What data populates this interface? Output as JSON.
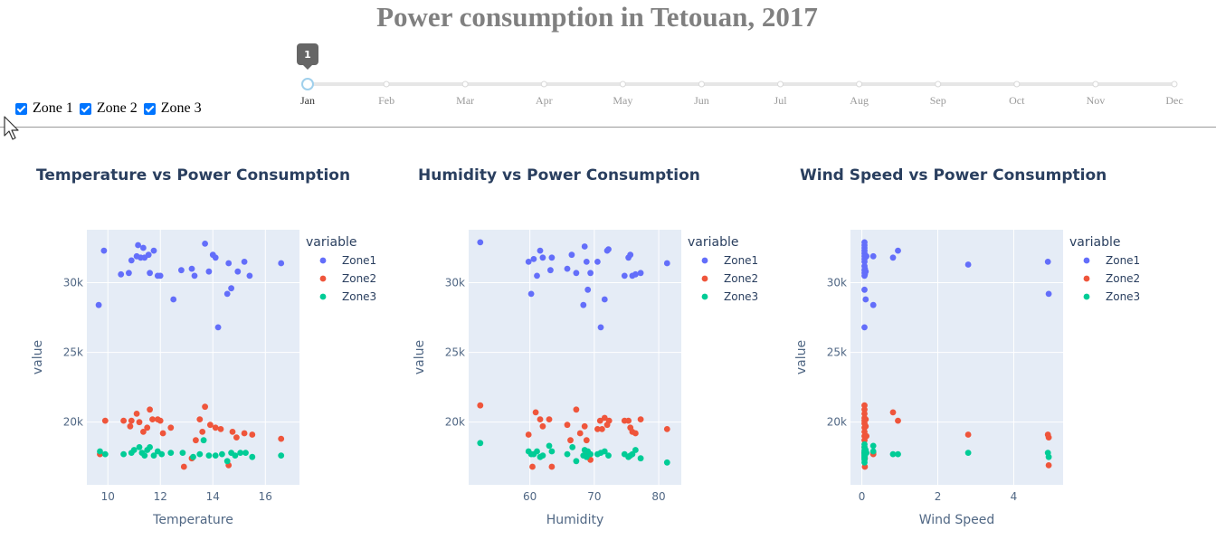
{
  "page": {
    "title": "Power consumption in Tetouan, 2017"
  },
  "zones": [
    {
      "label": "Zone 1",
      "checked": true
    },
    {
      "label": "Zone 2",
      "checked": true
    },
    {
      "label": "Zone 3",
      "checked": true
    }
  ],
  "month_slider": {
    "months": [
      "Jan",
      "Feb",
      "Mar",
      "Apr",
      "May",
      "Jun",
      "Jul",
      "Aug",
      "Sep",
      "Oct",
      "Nov",
      "Dec"
    ],
    "selected_index": 0,
    "tooltip": "1",
    "track_color": "#e6e6e6",
    "handle_color": "#a0d0ec"
  },
  "colors": {
    "Zone1": "#636efa",
    "Zone2": "#ef553b",
    "Zone3": "#00cc96",
    "plot_bg": "#e5ecf6",
    "title_text": "#2a3f5f",
    "axis_text": "#506784"
  },
  "chart_data": [
    {
      "type": "scatter",
      "title": "Temperature vs Power Consumption",
      "xlabel": "Temperature",
      "ylabel": "value",
      "xlim": [
        9.2,
        17.3
      ],
      "ylim": [
        15500,
        33800
      ],
      "xticks": [
        10,
        12,
        14,
        16
      ],
      "yticks": [
        20000,
        25000,
        30000
      ],
      "ytick_labels": [
        "20k",
        "25k",
        "30k"
      ],
      "legend_title": "variable",
      "series": [
        {
          "name": "Zone1",
          "x": [
            9.65,
            9.85,
            10.5,
            10.8,
            10.9,
            11.1,
            11.15,
            11.25,
            11.35,
            11.4,
            11.55,
            11.6,
            11.75,
            11.9,
            12.0,
            12.5,
            12.8,
            13.2,
            13.3,
            13.7,
            13.85,
            14.0,
            14.1,
            14.2,
            14.55,
            14.6,
            14.7,
            14.95,
            15.2,
            15.4,
            16.6
          ],
          "y": [
            28400,
            32300,
            30600,
            30700,
            31600,
            31900,
            32700,
            31800,
            32500,
            31800,
            32000,
            30700,
            32300,
            30500,
            30500,
            28800,
            30900,
            31000,
            30500,
            32800,
            30800,
            32000,
            31800,
            26800,
            29200,
            31400,
            29600,
            30800,
            31500,
            30500,
            31400
          ]
        },
        {
          "name": "Zone2",
          "x": [
            9.7,
            9.9,
            10.6,
            10.85,
            10.9,
            11.1,
            11.2,
            11.35,
            11.5,
            11.6,
            11.7,
            11.9,
            12.0,
            12.1,
            12.4,
            12.9,
            13.2,
            13.35,
            13.5,
            13.6,
            13.7,
            13.9,
            14.1,
            14.3,
            14.6,
            14.75,
            14.9,
            15.2,
            15.5,
            16.6
          ],
          "y": [
            17700,
            20100,
            20100,
            19700,
            20100,
            20600,
            20000,
            19300,
            19600,
            20900,
            20200,
            20200,
            20100,
            19200,
            19600,
            16800,
            17400,
            18700,
            20200,
            19300,
            21100,
            19800,
            19600,
            19500,
            16900,
            19300,
            18900,
            19200,
            19100,
            18800
          ]
        },
        {
          "name": "Zone3",
          "x": [
            9.7,
            9.9,
            10.6,
            10.9,
            11.0,
            11.2,
            11.3,
            11.4,
            11.5,
            11.6,
            11.75,
            11.9,
            12.05,
            12.4,
            12.85,
            13.25,
            13.5,
            13.65,
            13.85,
            14.1,
            14.35,
            14.55,
            14.7,
            14.85,
            15.05,
            15.25,
            15.5,
            16.6
          ],
          "y": [
            17900,
            17700,
            17700,
            17800,
            18000,
            18200,
            17800,
            17600,
            18000,
            18200,
            17600,
            17900,
            17700,
            17800,
            17800,
            17500,
            17700,
            18700,
            17600,
            17600,
            17700,
            17200,
            17800,
            17600,
            17800,
            17800,
            17500,
            17600
          ]
        }
      ]
    },
    {
      "type": "scatter",
      "title": "Humidity vs Power Consumption",
      "xlabel": "Humidity",
      "ylabel": "value",
      "xlim": [
        50.5,
        83.5
      ],
      "ylim": [
        15500,
        33800
      ],
      "xticks": [
        60,
        70,
        80
      ],
      "yticks": [
        20000,
        25000,
        30000
      ],
      "ytick_labels": [
        "20k",
        "25k",
        "30k"
      ],
      "legend_title": "variable",
      "series": [
        {
          "name": "Zone1",
          "x": [
            52.3,
            59.8,
            60.2,
            60.6,
            61.1,
            61.6,
            62.0,
            63.2,
            63.4,
            65.8,
            66.5,
            67.2,
            68.3,
            68.5,
            68.8,
            69.0,
            69.4,
            70.5,
            71.0,
            71.6,
            72.0,
            72.2,
            74.7,
            75.3,
            75.6,
            75.9,
            76.4,
            77.2,
            81.3
          ],
          "y": [
            32900,
            31500,
            29200,
            31700,
            30500,
            32300,
            31800,
            30900,
            31800,
            31000,
            32000,
            30700,
            28400,
            32600,
            31500,
            29500,
            30700,
            31500,
            26800,
            28800,
            32300,
            32400,
            30500,
            31800,
            32000,
            30500,
            30600,
            30700,
            31400
          ]
        },
        {
          "name": "Zone2",
          "x": [
            52.3,
            59.8,
            60.4,
            60.9,
            61.6,
            62.0,
            63.0,
            63.4,
            65.8,
            66.3,
            67.2,
            67.8,
            68.5,
            68.8,
            69.0,
            69.4,
            70.5,
            70.9,
            71.2,
            71.6,
            72.0,
            72.3,
            74.7,
            75.3,
            75.6,
            75.9,
            76.4,
            77.2,
            81.3
          ],
          "y": [
            21200,
            19100,
            16800,
            20700,
            20200,
            19700,
            20200,
            16800,
            19800,
            18700,
            20900,
            19200,
            19700,
            18700,
            17700,
            17300,
            19500,
            20100,
            19500,
            20300,
            19800,
            20100,
            20100,
            20100,
            19600,
            19300,
            19200,
            20200,
            19500
          ]
        },
        {
          "name": "Zone3",
          "x": [
            52.3,
            59.8,
            60.2,
            60.6,
            61.1,
            61.6,
            62.0,
            63.0,
            63.4,
            65.8,
            66.6,
            67.2,
            68.3,
            68.5,
            68.8,
            69.0,
            69.4,
            70.5,
            71.0,
            71.6,
            72.2,
            74.7,
            75.3,
            75.6,
            75.9,
            76.4,
            77.2,
            81.3
          ],
          "y": [
            18500,
            17900,
            17700,
            17700,
            17900,
            17500,
            17600,
            18300,
            17900,
            17700,
            18200,
            17200,
            17600,
            18000,
            17500,
            17900,
            17700,
            17700,
            17800,
            17900,
            17600,
            17700,
            17500,
            17600,
            17700,
            18000,
            17400,
            17100
          ]
        }
      ]
    },
    {
      "type": "scatter",
      "title": "Wind Speed vs Power Consumption",
      "xlabel": "Wind Speed",
      "ylabel": "value",
      "xlim": [
        -0.3,
        5.3
      ],
      "ylim": [
        15500,
        33800
      ],
      "xticks": [
        0,
        2,
        4
      ],
      "yticks": [
        20000,
        25000,
        30000
      ],
      "ytick_labels": [
        "20k",
        "25k",
        "30k"
      ],
      "legend_title": "variable",
      "series": [
        {
          "name": "Zone1",
          "x": [
            0.07,
            0.07,
            0.07,
            0.07,
            0.07,
            0.07,
            0.07,
            0.07,
            0.07,
            0.07,
            0.07,
            0.07,
            0.07,
            0.07,
            0.08,
            0.08,
            0.1,
            0.1,
            0.12,
            0.3,
            0.3,
            0.82,
            0.95,
            2.8,
            4.9,
            4.92
          ],
          "y": [
            32900,
            32700,
            32500,
            32300,
            32100,
            31900,
            31700,
            31500,
            31200,
            30900,
            30700,
            30500,
            29500,
            26800,
            31000,
            30600,
            28800,
            30800,
            31900,
            31900,
            28400,
            31800,
            32300,
            31300,
            31500,
            29200
          ]
        },
        {
          "name": "Zone2",
          "x": [
            0.07,
            0.07,
            0.07,
            0.07,
            0.07,
            0.07,
            0.07,
            0.07,
            0.07,
            0.07,
            0.07,
            0.07,
            0.08,
            0.08,
            0.1,
            0.1,
            0.12,
            0.3,
            0.3,
            0.82,
            0.95,
            2.8,
            4.9,
            4.92,
            4.92
          ],
          "y": [
            21200,
            20900,
            20600,
            20300,
            20100,
            19900,
            19600,
            19300,
            19000,
            18700,
            18200,
            17800,
            17400,
            16800,
            20200,
            19700,
            19000,
            17800,
            17700,
            20700,
            20100,
            19100,
            19100,
            18900,
            16900
          ]
        },
        {
          "name": "Zone3",
          "x": [
            0.07,
            0.07,
            0.07,
            0.07,
            0.07,
            0.07,
            0.07,
            0.07,
            0.07,
            0.07,
            0.07,
            0.08,
            0.08,
            0.1,
            0.1,
            0.12,
            0.3,
            0.3,
            0.82,
            0.95,
            2.8,
            4.9,
            4.92
          ],
          "y": [
            18400,
            18200,
            18000,
            17900,
            17800,
            17700,
            17600,
            17500,
            17400,
            17300,
            17100,
            17700,
            17600,
            17900,
            18000,
            17800,
            18300,
            17900,
            17700,
            17700,
            17800,
            17800,
            17500
          ]
        }
      ]
    }
  ]
}
